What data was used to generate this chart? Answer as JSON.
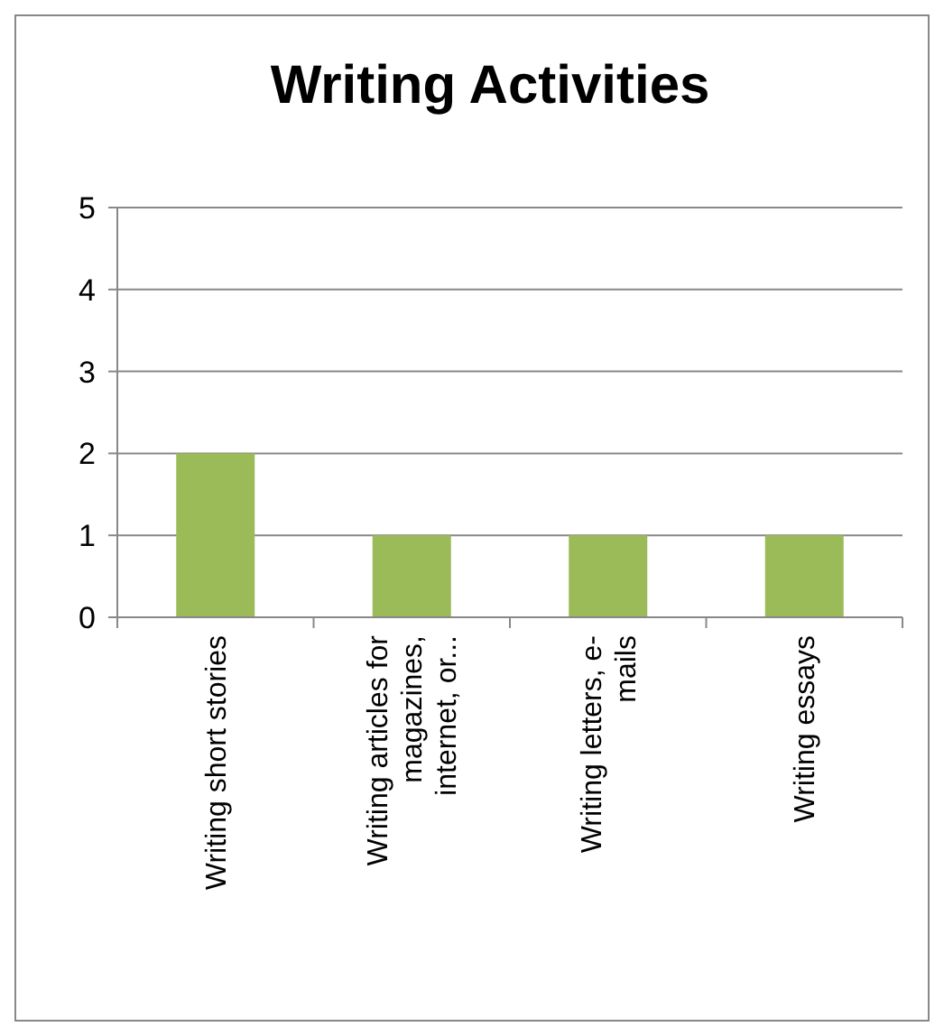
{
  "chart_data": {
    "type": "bar",
    "title": "Writing Activities",
    "categories": [
      "Writing short stories",
      "Writing articles for magazines, internet, or...",
      "Writing letters, e-mails",
      "Writing essays"
    ],
    "values": [
      2,
      1,
      1,
      1
    ],
    "color": "#9bbb59",
    "ylim": [
      0,
      5
    ],
    "yticks": [
      0,
      1,
      2,
      3,
      4,
      5
    ],
    "grid": "y"
  }
}
